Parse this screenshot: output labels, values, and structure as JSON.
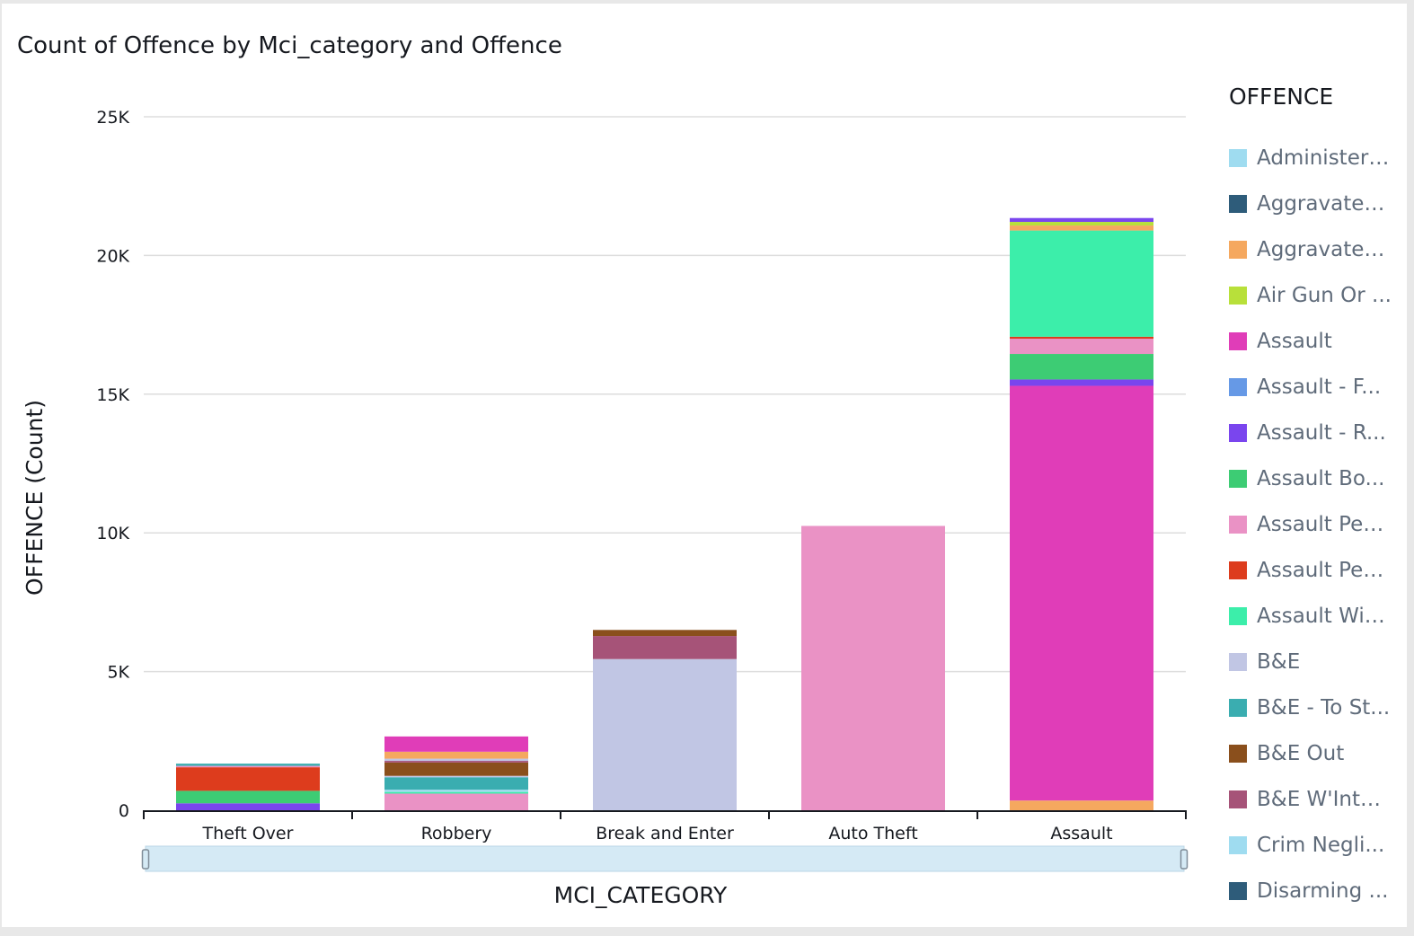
{
  "chart_data": {
    "type": "bar",
    "stacked": true,
    "title": "Count of Offence by Mci_category and Offence",
    "xlabel": "MCI_CATEGORY",
    "ylabel": "OFFENCE (Count)",
    "ylim": [
      0,
      25000
    ],
    "yticks": [
      {
        "value": 0,
        "label": "0"
      },
      {
        "value": 5000,
        "label": "5K"
      },
      {
        "value": 10000,
        "label": "10K"
      },
      {
        "value": 15000,
        "label": "15K"
      },
      {
        "value": 20000,
        "label": "20K"
      },
      {
        "value": 25000,
        "label": "25K"
      }
    ],
    "grid": true,
    "legend_position": "right",
    "legend_title": "OFFENCE",
    "categories": [
      "Theft Over",
      "Robbery",
      "Break and Enter",
      "Auto Theft",
      "Assault"
    ],
    "legend": [
      {
        "label": "Administeri...",
        "color": "#9fdcf0"
      },
      {
        "label": "Aggravated...",
        "color": "#2e5c7a"
      },
      {
        "label": "Aggravated...",
        "color": "#f5a85f"
      },
      {
        "label": "Air Gun Or ...",
        "color": "#b8e03a"
      },
      {
        "label": "Assault",
        "color": "#e03db8"
      },
      {
        "label": "Assault - F...",
        "color": "#6699e6"
      },
      {
        "label": "Assault - R...",
        "color": "#7a45ee"
      },
      {
        "label": "Assault Bo...",
        "color": "#3dcc74"
      },
      {
        "label": "Assault Pea...",
        "color": "#ea92c5"
      },
      {
        "label": "Assault Pea...",
        "color": "#dd3c1d"
      },
      {
        "label": "Assault Wit...",
        "color": "#3ceeaa"
      },
      {
        "label": "B&E",
        "color": "#c1c6e4"
      },
      {
        "label": "B&E - To St...",
        "color": "#3aadb0"
      },
      {
        "label": "B&E Out",
        "color": "#8a4f1c"
      },
      {
        "label": "B&E W'Intent",
        "color": "#a65378"
      },
      {
        "label": "Crim Negli...",
        "color": "#9fdcf0"
      },
      {
        "label": "Disarming ...",
        "color": "#2e5c7a"
      }
    ],
    "stacks": [
      {
        "category": "Theft Over",
        "segments": [
          {
            "color": "#7a45ee",
            "value": 250
          },
          {
            "color": "#3dcc74",
            "value": 450
          },
          {
            "color": "#dd3c1d",
            "value": 850
          },
          {
            "color": "#ea92c5",
            "value": 50
          },
          {
            "color": "#3aadb0",
            "value": 80
          }
        ]
      },
      {
        "category": "Robbery",
        "segments": [
          {
            "color": "#ea92c5",
            "value": 600
          },
          {
            "color": "#3ceeaa",
            "value": 60
          },
          {
            "color": "#9fdcf0",
            "value": 80
          },
          {
            "color": "#3aadb0",
            "value": 450
          },
          {
            "color": "#c1c6e4",
            "value": 50
          },
          {
            "color": "#8a4f1c",
            "value": 480
          },
          {
            "color": "#a65378",
            "value": 60
          },
          {
            "color": "#c1c6e4",
            "value": 80
          },
          {
            "color": "#f5a85f",
            "value": 250
          },
          {
            "color": "#e03db8",
            "value": 550
          }
        ]
      },
      {
        "category": "Break and Enter",
        "segments": [
          {
            "color": "#c1c6e4",
            "value": 5450
          },
          {
            "color": "#a65378",
            "value": 830
          },
          {
            "color": "#8a4f1c",
            "value": 220
          }
        ]
      },
      {
        "category": "Auto Theft",
        "segments": [
          {
            "color": "#ea92c5",
            "value": 10250
          }
        ]
      },
      {
        "category": "Assault",
        "segments": [
          {
            "color": "#f5a85f",
            "value": 350
          },
          {
            "color": "#e03db8",
            "value": 14950
          },
          {
            "color": "#7a45ee",
            "value": 230
          },
          {
            "color": "#3dcc74",
            "value": 920
          },
          {
            "color": "#ea92c5",
            "value": 550
          },
          {
            "color": "#dd3c1d",
            "value": 70
          },
          {
            "color": "#3ceeaa",
            "value": 3830
          },
          {
            "color": "#f5a85f",
            "value": 180
          },
          {
            "color": "#b8e03a",
            "value": 130
          },
          {
            "color": "#7a45ee",
            "value": 140
          }
        ]
      }
    ]
  }
}
